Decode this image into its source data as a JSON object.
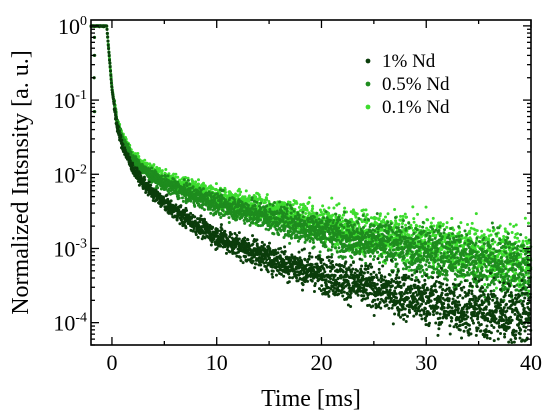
{
  "chart_data": {
    "type": "scatter",
    "xlabel": "Time [ms]",
    "ylabel": "Normalized Intsnsity [a. u.]",
    "xlim": [
      -2,
      40
    ],
    "ylim": [
      5e-05,
      1.2
    ],
    "y_scale": "log",
    "grid": false,
    "legend_position": "top-right",
    "x_ticks": [
      {
        "value": 0,
        "label": "0"
      },
      {
        "value": 10,
        "label": "10"
      },
      {
        "value": 20,
        "label": "20"
      },
      {
        "value": 30,
        "label": "30"
      },
      {
        "value": 40,
        "label": "40"
      }
    ],
    "y_ticks": [
      {
        "value": 1,
        "base": "10",
        "exp": "0"
      },
      {
        "value": 0.1,
        "base": "10",
        "exp": "-1"
      },
      {
        "value": 0.01,
        "base": "10",
        "exp": "-2"
      },
      {
        "value": 0.001,
        "base": "10",
        "exp": "-3"
      },
      {
        "value": 0.0001,
        "base": "10",
        "exp": "-4"
      }
    ],
    "series": [
      {
        "name": "1% Nd",
        "color": "#0b3d0b",
        "points": [
          [
            -2.0,
            1.0
          ],
          [
            -1.5,
            1.0
          ],
          [
            -1.0,
            1.0
          ],
          [
            -0.5,
            1.0
          ],
          [
            0.0,
            0.14
          ],
          [
            0.5,
            0.043
          ],
          [
            1.0,
            0.024
          ],
          [
            2.0,
            0.0118
          ],
          [
            3.0,
            0.0075
          ],
          [
            4.0,
            0.0054
          ],
          [
            5.0,
            0.0041
          ],
          [
            6.0,
            0.0032
          ],
          [
            8.0,
            0.0021
          ],
          [
            10.0,
            0.00145
          ],
          [
            12.0,
            0.00108
          ],
          [
            15.0,
            0.00075
          ],
          [
            18.0,
            0.00054
          ],
          [
            20.0,
            0.00045
          ],
          [
            22.0,
            0.00038
          ],
          [
            25.0,
            0.00029
          ],
          [
            28.0,
            0.00023
          ],
          [
            30.0,
            0.0002
          ],
          [
            33.0,
            0.00016
          ],
          [
            36.0,
            0.00014
          ],
          [
            40.0,
            0.00012
          ]
        ]
      },
      {
        "name": "0.5% Nd",
        "color": "#1e8c1e",
        "points": [
          [
            -2.0,
            1.0
          ],
          [
            -1.5,
            1.0
          ],
          [
            -1.0,
            1.0
          ],
          [
            -0.5,
            1.0
          ],
          [
            0.0,
            0.15
          ],
          [
            0.5,
            0.05
          ],
          [
            1.0,
            0.03
          ],
          [
            2.0,
            0.016
          ],
          [
            3.0,
            0.0115
          ],
          [
            4.0,
            0.009
          ],
          [
            5.0,
            0.0075
          ],
          [
            6.0,
            0.0065
          ],
          [
            8.0,
            0.005
          ],
          [
            10.0,
            0.004
          ],
          [
            12.0,
            0.0034
          ],
          [
            15.0,
            0.0026
          ],
          [
            18.0,
            0.002
          ],
          [
            20.0,
            0.0017
          ],
          [
            22.0,
            0.0015
          ],
          [
            25.0,
            0.0012
          ],
          [
            28.0,
            0.001
          ],
          [
            30.0,
            0.0009
          ],
          [
            33.0,
            0.00075
          ],
          [
            36.0,
            0.00064
          ],
          [
            40.0,
            0.00052
          ]
        ]
      },
      {
        "name": "0.1% Nd",
        "color": "#3ddc2e",
        "points": [
          [
            -2.0,
            1.0
          ],
          [
            -1.5,
            1.0
          ],
          [
            -1.0,
            1.0
          ],
          [
            -0.5,
            1.0
          ],
          [
            0.0,
            0.14
          ],
          [
            0.5,
            0.05
          ],
          [
            1.0,
            0.032
          ],
          [
            2.0,
            0.018
          ],
          [
            3.0,
            0.013
          ],
          [
            4.0,
            0.0105
          ],
          [
            5.0,
            0.0088
          ],
          [
            6.0,
            0.0076
          ],
          [
            8.0,
            0.006
          ],
          [
            10.0,
            0.0049
          ],
          [
            12.0,
            0.0041
          ],
          [
            15.0,
            0.0032
          ],
          [
            18.0,
            0.0026
          ],
          [
            20.0,
            0.0022
          ],
          [
            22.0,
            0.0019
          ],
          [
            25.0,
            0.0016
          ],
          [
            28.0,
            0.0013
          ],
          [
            30.0,
            0.0012
          ],
          [
            33.0,
            0.00098
          ],
          [
            36.0,
            0.00083
          ],
          [
            40.0,
            0.00068
          ]
        ]
      }
    ]
  }
}
